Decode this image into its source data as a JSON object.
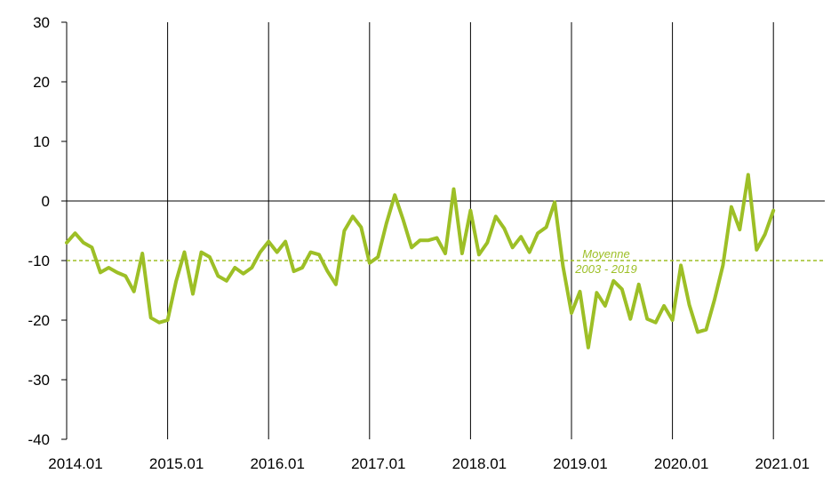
{
  "chart_data": {
    "type": "line",
    "title": "",
    "xlabel": "",
    "ylabel": "",
    "ylim": [
      -40,
      30
    ],
    "yticks": [
      30,
      20,
      10,
      0,
      -10,
      -20,
      -30,
      -40
    ],
    "xticks": [
      "2014.01",
      "2015.01",
      "2016.01",
      "2017.01",
      "2018.01",
      "2019.01",
      "2020.01",
      "2021.01"
    ],
    "grid": "vertical lines at each year start",
    "series": [
      {
        "color": "#9dbf26",
        "start": "2014.01",
        "frequency": "monthly",
        "values": [
          -7.0,
          -5.4,
          -7.0,
          -7.8,
          -12.0,
          -11.2,
          -12.0,
          -12.6,
          -15.2,
          -8.8,
          -19.6,
          -20.4,
          -20.0,
          -13.5,
          -8.6,
          -15.6,
          -8.6,
          -9.4,
          -12.6,
          -13.4,
          -11.2,
          -12.2,
          -11.2,
          -8.6,
          -6.8,
          -8.6,
          -6.8,
          -11.8,
          -11.2,
          -8.6,
          -9.0,
          -11.8,
          -14.0,
          -5.0,
          -2.6,
          -4.4,
          -10.4,
          -9.4,
          -3.8,
          1.0,
          -3.2,
          -7.8,
          -6.6,
          -6.6,
          -6.2,
          -8.8,
          2.0,
          -8.8,
          -1.6,
          -9.0,
          -7.0,
          -2.6,
          -4.6,
          -7.8,
          -6.0,
          -8.6,
          -5.4,
          -4.4,
          -0.2,
          -11.0,
          -18.8,
          -15.2,
          -24.6,
          -15.4,
          -17.6,
          -13.4,
          -14.8,
          -19.8,
          -14.0,
          -19.8,
          -20.4,
          -17.6,
          -20.0,
          -10.8,
          -17.4,
          -22.0,
          -21.6,
          -16.6,
          -10.8,
          -1.0,
          -4.8,
          4.4,
          -8.2,
          -5.6,
          -1.6
        ]
      },
      {
        "name": "Moyenne 2003 - 2019",
        "color": "#9dbf26",
        "style": "dashed",
        "value": -10
      }
    ],
    "annotations": [
      "Moyenne",
      "2003 - 2019"
    ],
    "colors": {
      "series": "#9dbf26",
      "axis": "#000000"
    }
  }
}
